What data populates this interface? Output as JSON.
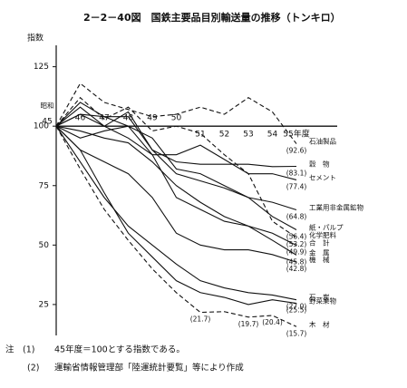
{
  "chart_data": {
    "type": "line",
    "title": "2－2－40図　国鉄主要品目別輸送量の推移（トンキロ）",
    "y_label": "指数",
    "x_prefix": "昭和",
    "categories": [
      "45",
      "46",
      "47",
      "48",
      "49",
      "50",
      "51",
      "52",
      "53",
      "54",
      "55年度"
    ],
    "ylim": [
      12,
      134
    ],
    "yticks": [
      25,
      50,
      75,
      100,
      125
    ],
    "baseline": 100,
    "series": [
      {
        "name": "石油製品",
        "color": "#111",
        "dashed": true,
        "values": [
          100,
          118,
          110,
          107,
          104,
          105,
          108,
          105,
          112,
          106,
          92.6
        ],
        "value_labels": [
          null,
          null,
          null,
          null,
          null,
          null,
          null,
          null,
          null,
          null,
          "(92.6)"
        ]
      },
      {
        "name": "穀　物",
        "color": "#111",
        "dashed": false,
        "values": [
          100,
          105,
          100,
          106,
          90,
          85,
          84,
          84,
          84,
          83,
          83.1
        ],
        "value_labels": [
          null,
          null,
          null,
          null,
          null,
          null,
          null,
          null,
          null,
          null,
          "(83.1)"
        ]
      },
      {
        "name": "セメント",
        "color": "#111",
        "dashed": false,
        "values": [
          100,
          108,
          100,
          95,
          88,
          88,
          92,
          86,
          80,
          80,
          77.4
        ],
        "value_labels": [
          null,
          null,
          null,
          null,
          null,
          null,
          null,
          null,
          null,
          null,
          "(77.4)"
        ]
      },
      {
        "name": "工業用非金属鉱物",
        "color": "#111",
        "dashed": false,
        "values": [
          100,
          105,
          104,
          100,
          95,
          82,
          80,
          75,
          70,
          68,
          64.8
        ],
        "value_labels": [
          null,
          null,
          null,
          null,
          null,
          null,
          null,
          null,
          null,
          null,
          "(64.8)"
        ]
      },
      {
        "name": "紙・パルプ",
        "color": "#111",
        "dashed": false,
        "values": [
          100,
          110,
          104,
          104,
          90,
          80,
          77,
          74,
          70,
          62,
          56.4
        ],
        "value_labels": [
          null,
          null,
          null,
          null,
          null,
          null,
          null,
          null,
          null,
          null,
          "(56.4)"
        ]
      },
      {
        "name": "化学肥料",
        "color": "#111",
        "dashed": true,
        "values": [
          100,
          112,
          103,
          108,
          98,
          100,
          97,
          88,
          80,
          60,
          53.2
        ],
        "value_labels": [
          null,
          null,
          null,
          null,
          null,
          null,
          null,
          null,
          null,
          null,
          "(53.2)"
        ]
      },
      {
        "name": "合　計",
        "color": "#111",
        "dashed": false,
        "values": [
          100,
          98,
          95,
          93,
          85,
          75,
          68,
          62,
          58,
          55,
          49.9
        ],
        "value_labels": [
          null,
          null,
          null,
          null,
          null,
          null,
          null,
          null,
          null,
          null,
          "(49.9)"
        ]
      },
      {
        "name": "金　属",
        "color": "#111",
        "dashed": false,
        "values": [
          100,
          95,
          98,
          100,
          88,
          70,
          65,
          60,
          58,
          52,
          45.8
        ],
        "value_labels": [
          null,
          null,
          null,
          null,
          null,
          null,
          null,
          null,
          null,
          null,
          "(45.8)"
        ]
      },
      {
        "name": "機　械",
        "color": "#111",
        "dashed": false,
        "values": [
          100,
          90,
          85,
          80,
          70,
          55,
          50,
          48,
          48,
          46,
          42.8
        ],
        "value_labels": [
          null,
          null,
          null,
          null,
          null,
          null,
          null,
          null,
          null,
          null,
          "(42.8)"
        ]
      },
      {
        "name": "石　炭",
        "color": "#111",
        "dashed": false,
        "values": [
          100,
          85,
          70,
          58,
          50,
          42,
          35,
          32,
          30,
          29,
          27.0
        ],
        "value_labels": [
          null,
          null,
          null,
          null,
          null,
          null,
          null,
          null,
          null,
          null,
          "(27.0)"
        ]
      },
      {
        "name": "野菜果物",
        "color": "#111",
        "dashed": false,
        "values": [
          100,
          90,
          72,
          55,
          45,
          35,
          30,
          28,
          25,
          27,
          25.5
        ],
        "value_labels": [
          null,
          null,
          null,
          null,
          null,
          null,
          null,
          null,
          null,
          null,
          "(25.5)"
        ]
      },
      {
        "name": "木　材",
        "color": "#111",
        "dashed": true,
        "values": [
          100,
          82,
          65,
          52,
          40,
          30,
          21.7,
          22,
          19.7,
          20.4,
          15.7
        ],
        "value_labels": [
          null,
          null,
          null,
          null,
          null,
          null,
          "(21.7)",
          null,
          "(19.7)",
          "(20.4)",
          "(15.7)"
        ]
      }
    ],
    "notes": [
      {
        "mark": "注　(1)",
        "text": "45年度＝100とする指数である。"
      },
      {
        "mark": "(2)",
        "text": "運輸省情報管理部「陸運統計要覧」等により作成"
      }
    ]
  }
}
